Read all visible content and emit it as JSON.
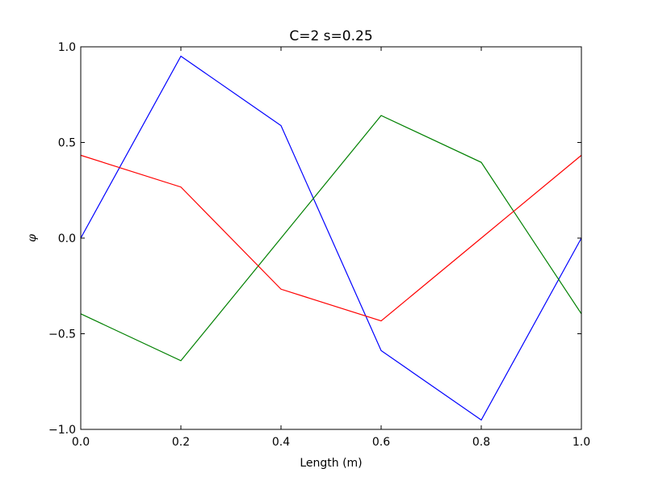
{
  "chart_data": {
    "type": "line",
    "title": "C=2 s=0.25",
    "xlabel": "Length (m)",
    "ylabel": "φ",
    "xlim": [
      0.0,
      1.0
    ],
    "ylim": [
      -1.0,
      1.0
    ],
    "xticks": [
      0.0,
      0.2,
      0.4,
      0.6,
      0.8,
      1.0
    ],
    "xtick_labels": [
      "0.0",
      "0.2",
      "0.4",
      "0.6",
      "0.8",
      "1.0"
    ],
    "yticks": [
      -1.0,
      -0.5,
      0.0,
      0.5,
      1.0
    ],
    "ytick_labels": [
      "−1.0",
      "−0.5",
      "0.0",
      "0.5",
      "1.0"
    ],
    "grid": false,
    "x": [
      0.0,
      0.2,
      0.4,
      0.6,
      0.8,
      1.0
    ],
    "series": [
      {
        "color": "#0000ff",
        "values": [
          0.0,
          0.951,
          0.588,
          -0.588,
          -0.951,
          0.0
        ]
      },
      {
        "color": "#008000",
        "values": [
          -0.396,
          -0.641,
          0.0,
          0.641,
          0.396,
          -0.396
        ]
      },
      {
        "color": "#ff0000",
        "values": [
          0.433,
          0.267,
          -0.267,
          -0.433,
          0.0,
          0.433
        ]
      }
    ]
  }
}
